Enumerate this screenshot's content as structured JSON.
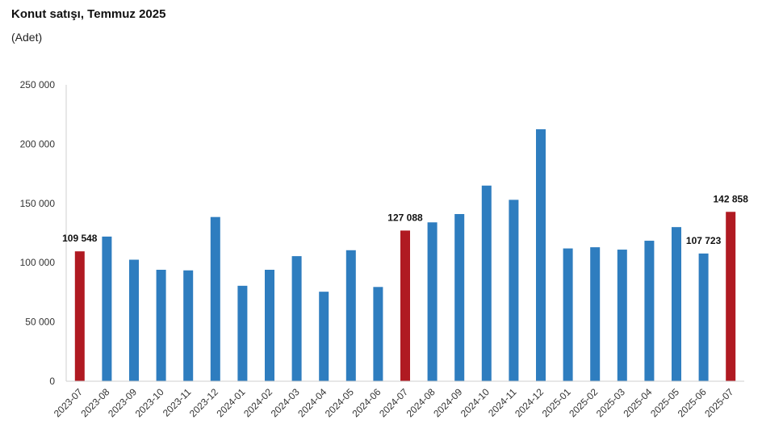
{
  "title": "Konut satışı, Temmuz 2025",
  "subtitle": "(Adet)",
  "colors": {
    "bar": "#2e7dbf",
    "highlight": "#b01a22",
    "axis": "#cfcfcf"
  },
  "chart_data": {
    "type": "bar",
    "title": "Konut satışı, Temmuz 2025",
    "subtitle": "(Adet)",
    "xlabel": "",
    "ylabel": "",
    "ylim": [
      0,
      250000
    ],
    "yticks": [
      0,
      50000,
      100000,
      150000,
      200000,
      250000
    ],
    "ytick_labels": [
      "0",
      "50 000",
      "100 000",
      "150 000",
      "200 000",
      "250 000"
    ],
    "grid": false,
    "categories": [
      "2023-07",
      "2023-08",
      "2023-09",
      "2023-10",
      "2023-11",
      "2023-12",
      "2024-01",
      "2024-02",
      "2024-03",
      "2024-04",
      "2024-05",
      "2024-06",
      "2024-07",
      "2024-08",
      "2024-09",
      "2024-10",
      "2024-11",
      "2024-12",
      "2025-01",
      "2025-02",
      "2025-03",
      "2025-04",
      "2025-05",
      "2025-06",
      "2025-07"
    ],
    "values": [
      109548,
      122000,
      102500,
      94000,
      93500,
      138500,
      80500,
      94000,
      105500,
      75500,
      110500,
      79500,
      127088,
      134000,
      141000,
      165000,
      153000,
      212500,
      112000,
      113000,
      111000,
      118500,
      130000,
      107723,
      142858
    ],
    "highlighted": [
      "2023-07",
      "2024-07",
      "2025-07"
    ],
    "data_labels": [
      {
        "category": "2023-07",
        "text": "109 548"
      },
      {
        "category": "2024-07",
        "text": "127 088"
      },
      {
        "category": "2025-06",
        "text": "107 723"
      },
      {
        "category": "2025-07",
        "text": "142 858"
      }
    ]
  }
}
